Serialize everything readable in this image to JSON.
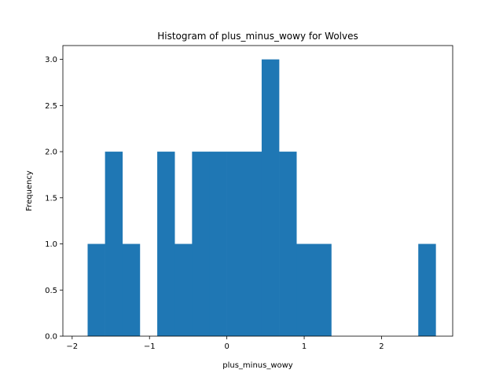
{
  "chart_data": {
    "type": "bar",
    "title": "Histogram of plus_minus_wowy for Wolves",
    "xlabel": "plus_minus_wowy",
    "ylabel": "Frequency",
    "xlim": [
      -2.12,
      2.92
    ],
    "ylim": [
      0,
      3.15
    ],
    "xticks": [
      -2,
      -1,
      0,
      1,
      2
    ],
    "yticks": [
      0.0,
      0.5,
      1.0,
      1.5,
      2.0,
      2.5,
      3.0
    ],
    "xtick_labels": [
      "−2",
      "−1",
      "0",
      "1",
      "2"
    ],
    "ytick_labels": [
      "0.0",
      "0.5",
      "1.0",
      "1.5",
      "2.0",
      "2.5",
      "3.0"
    ],
    "bar_color": "#1f77b4",
    "bin_edges": [
      -1.8,
      -1.575,
      -1.35,
      -1.125,
      -0.9,
      -0.675,
      -0.45,
      -0.225,
      0.0,
      0.225,
      0.45,
      0.675,
      0.9,
      1.125,
      1.35,
      1.575,
      1.8,
      2.025,
      2.25,
      2.475,
      2.7
    ],
    "values": [
      1,
      2,
      1,
      0,
      2,
      1,
      2,
      2,
      2,
      2,
      3,
      2,
      1,
      1,
      0,
      0,
      0,
      0,
      0,
      1
    ]
  }
}
